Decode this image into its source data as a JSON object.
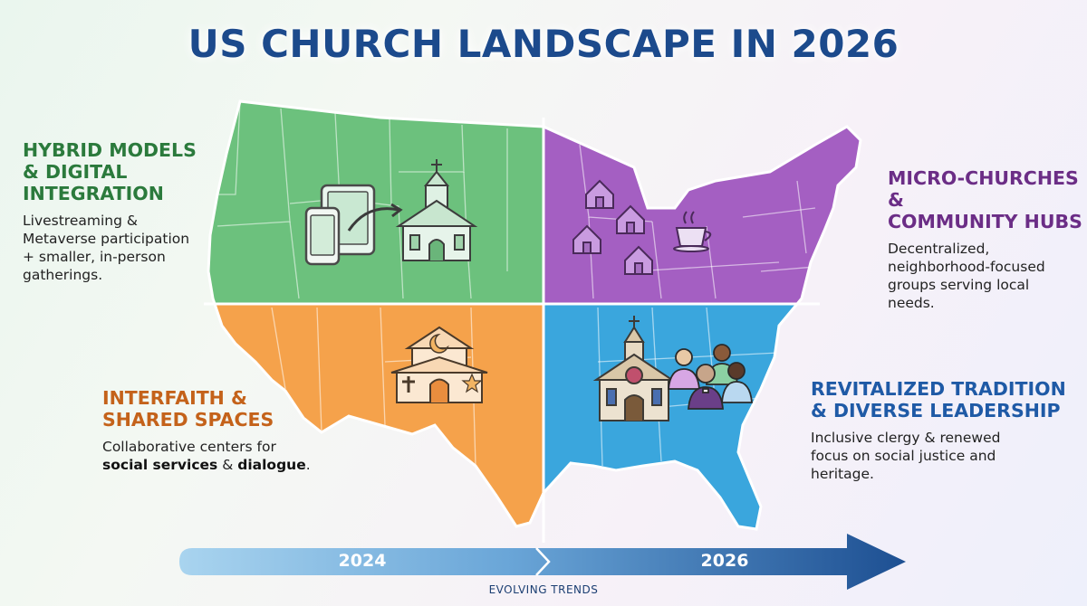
{
  "title": "US CHURCH LANDSCAPE IN 2026",
  "colors": {
    "title": "#1c4a8c",
    "west": "#6cc17d",
    "midwest_northeast": "#a45fc2",
    "southwest": "#f5a24b",
    "southeast": "#3aa6dd"
  },
  "quadrants": {
    "hybrid": {
      "heading": [
        "HYBRID MODELS",
        "& DIGITAL",
        "INTEGRATION"
      ],
      "description": [
        "Livestreaming &",
        "Metaverse participation",
        "+ smaller, in-person",
        "gatherings."
      ],
      "icons": [
        "tablet-icon",
        "smartphone-icon",
        "arrow-icon",
        "church-icon"
      ]
    },
    "micro": {
      "heading": [
        "MICRO-CHURCHES &",
        "COMMUNITY HUBS"
      ],
      "description": [
        "Decentralized,",
        "neighborhood-focused",
        "groups serving local",
        "needs."
      ],
      "icons": [
        "house-icon",
        "coffee-cup-icon"
      ]
    },
    "interfaith": {
      "heading": [
        "INTERFAITH &",
        "SHARED SPACES"
      ],
      "description_lines": [
        {
          "plain_start": "Collaborative centers for",
          "bold": ""
        },
        {
          "bold_a": "social services",
          "plain_mid": " & ",
          "bold_b": "dialogue",
          "plain_end": "."
        }
      ],
      "icons": [
        "interfaith-building-icon",
        "cross-icon",
        "crescent-icon",
        "star-icon"
      ]
    },
    "revitalized": {
      "heading": [
        "REVITALIZED TRADITION",
        "& DIVERSE LEADERSHIP"
      ],
      "description": [
        "Inclusive clergy & renewed",
        "focus on social justice and",
        "heritage."
      ],
      "icons": [
        "traditional-church-icon",
        "people-group-icon"
      ]
    }
  },
  "timeline": {
    "start": "2024",
    "end": "2026",
    "caption": "EVOLVING TRENDS"
  }
}
